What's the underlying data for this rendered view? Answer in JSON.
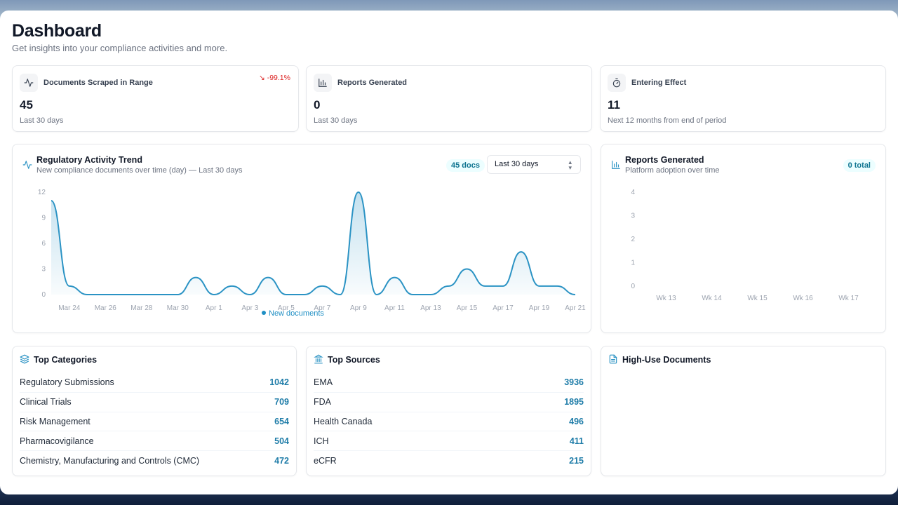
{
  "page": {
    "title": "Dashboard",
    "subtitle": "Get insights into your compliance activities and more."
  },
  "stats": [
    {
      "label": "Documents Scraped in Range",
      "value": "45",
      "foot": "Last 30 days",
      "change": "-99.1%",
      "icon": "activity-icon"
    },
    {
      "label": "Reports Generated",
      "value": "0",
      "foot": "Last 30 days",
      "icon": "bar-chart-icon"
    },
    {
      "label": "Entering Effect",
      "value": "11",
      "foot": "Next 12 months from end of period",
      "icon": "timer-icon"
    }
  ],
  "trend": {
    "title": "Regulatory Activity Trend",
    "subtitle": "New compliance documents over time (day) — Last 30 days",
    "pill": "45 docs",
    "range_select": {
      "value": "Last 30 days"
    },
    "legend": "New documents"
  },
  "reports": {
    "title": "Reports Generated",
    "subtitle": "Platform adoption over time",
    "pill": "0 total"
  },
  "chart_data": [
    {
      "type": "area",
      "title": "Regulatory Activity Trend",
      "x": [
        "Mar 23",
        "Mar 24",
        "Mar 25",
        "Mar 26",
        "Mar 27",
        "Mar 28",
        "Mar 29",
        "Mar 30",
        "Mar 31",
        "Apr 1",
        "Apr 2",
        "Apr 3",
        "Apr 4",
        "Apr 5",
        "Apr 6",
        "Apr 7",
        "Apr 8",
        "Apr 9",
        "Apr 10",
        "Apr 11",
        "Apr 12",
        "Apr 13",
        "Apr 14",
        "Apr 15",
        "Apr 16",
        "Apr 17",
        "Apr 18",
        "Apr 19",
        "Apr 20",
        "Apr 21"
      ],
      "tick_labels": [
        "Mar 24",
        "Mar 26",
        "Mar 28",
        "Mar 30",
        "Apr 1",
        "Apr 3",
        "Apr 5",
        "Apr 7",
        "Apr 9",
        "Apr 11",
        "Apr 13",
        "Apr 15",
        "Apr 17",
        "Apr 19",
        "Apr 21"
      ],
      "series": [
        {
          "name": "New documents",
          "values": [
            11,
            1,
            0,
            0,
            0,
            0,
            0,
            0,
            2,
            0,
            1,
            0,
            2,
            0,
            0,
            1,
            0,
            12,
            0,
            2,
            0,
            0,
            1,
            3,
            1,
            1,
            5,
            1,
            1,
            0
          ]
        }
      ],
      "yticks": [
        0,
        3,
        6,
        9,
        12
      ],
      "ylim": [
        0,
        12
      ],
      "color": "#2b93c4"
    },
    {
      "type": "bar",
      "title": "Reports Generated",
      "categories": [
        "Wk 13",
        "Wk 14",
        "Wk 15",
        "Wk 16",
        "Wk 17"
      ],
      "values": [
        0,
        0,
        0,
        0,
        0
      ],
      "yticks": [
        0,
        1,
        2,
        3,
        4
      ],
      "ylim": [
        0,
        4
      ]
    }
  ],
  "top_categories": {
    "title": "Top Categories",
    "items": [
      {
        "name": "Regulatory Submissions",
        "count": "1042"
      },
      {
        "name": "Clinical Trials",
        "count": "709"
      },
      {
        "name": "Risk Management",
        "count": "654"
      },
      {
        "name": "Pharmacovigilance",
        "count": "504"
      },
      {
        "name": "Chemistry, Manufacturing and Controls (CMC)",
        "count": "472"
      }
    ]
  },
  "top_sources": {
    "title": "Top Sources",
    "items": [
      {
        "name": "EMA",
        "count": "3936"
      },
      {
        "name": "FDA",
        "count": "1895"
      },
      {
        "name": "Health Canada",
        "count": "496"
      },
      {
        "name": "ICH",
        "count": "411"
      },
      {
        "name": "eCFR",
        "count": "215"
      }
    ]
  },
  "high_use": {
    "title": "High-Use Documents"
  }
}
